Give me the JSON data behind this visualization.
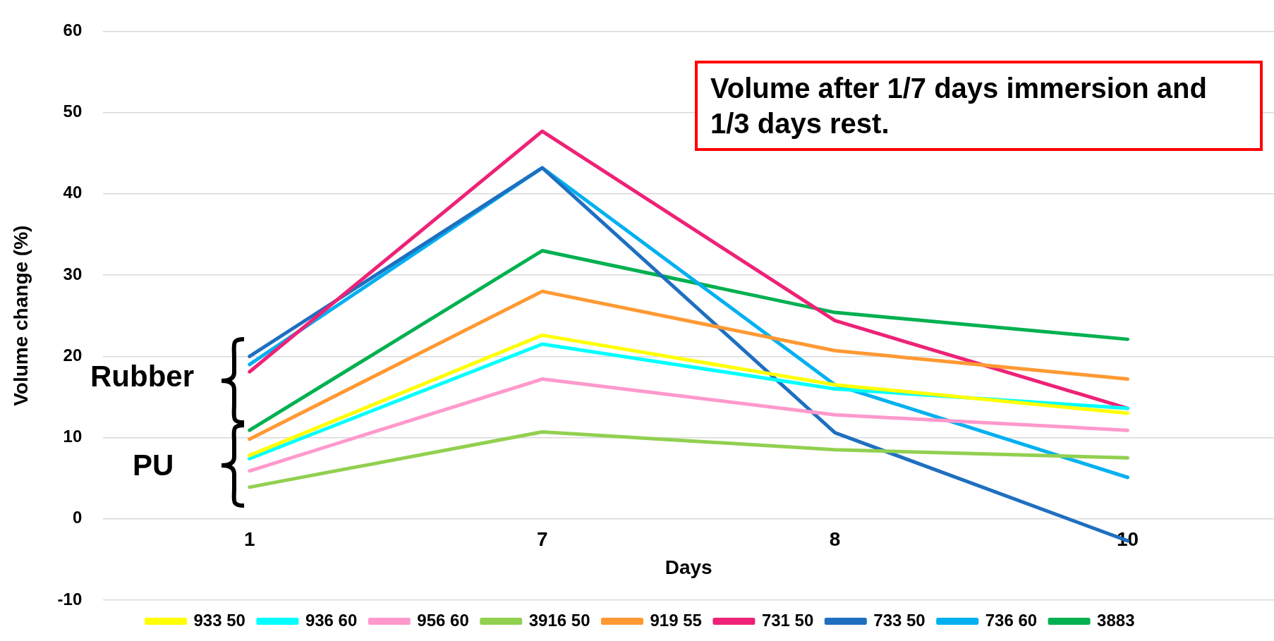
{
  "chart_data": {
    "type": "line",
    "xlabel": "Days",
    "ylabel": "Volume change (%)",
    "categories": [
      "1",
      "7",
      "8",
      "10"
    ],
    "ylim": [
      -10,
      60
    ],
    "yticks": [
      -10,
      0,
      10,
      20,
      30,
      40,
      50,
      60
    ],
    "grid": "y",
    "legend": "bottom",
    "marker": "none",
    "line_style": "solid",
    "series": [
      {
        "name": "933 50",
        "color": "#ffff00",
        "values": [
          7.8,
          22.6,
          16.5,
          13.0
        ]
      },
      {
        "name": "936 60",
        "color": "#00ffff",
        "values": [
          7.4,
          21.5,
          16.0,
          13.6
        ]
      },
      {
        "name": "956 60",
        "color": "#ff99cc",
        "values": [
          5.9,
          17.2,
          12.8,
          10.9
        ]
      },
      {
        "name": "3916 50",
        "color": "#92d050",
        "values": [
          3.9,
          10.7,
          8.5,
          7.5
        ]
      },
      {
        "name": "919 55",
        "color": "#ff9933",
        "values": [
          9.8,
          28.0,
          20.7,
          17.2
        ]
      },
      {
        "name": "731 50",
        "color": "#ee2277",
        "values": [
          18.1,
          47.7,
          24.4,
          13.6
        ]
      },
      {
        "name": "733 50",
        "color": "#1f6fc0",
        "values": [
          20.0,
          43.2,
          10.6,
          -2.7
        ]
      },
      {
        "name": "736 60",
        "color": "#00b0f0",
        "values": [
          19.0,
          43.2,
          16.5,
          5.1
        ]
      },
      {
        "name": "3883",
        "color": "#00b050",
        "values": [
          10.9,
          33.0,
          25.4,
          22.1
        ]
      }
    ],
    "annotations": [
      "Volume after 1/7 days immersion and 1/3 days rest.",
      "Rubber",
      "PU"
    ]
  }
}
